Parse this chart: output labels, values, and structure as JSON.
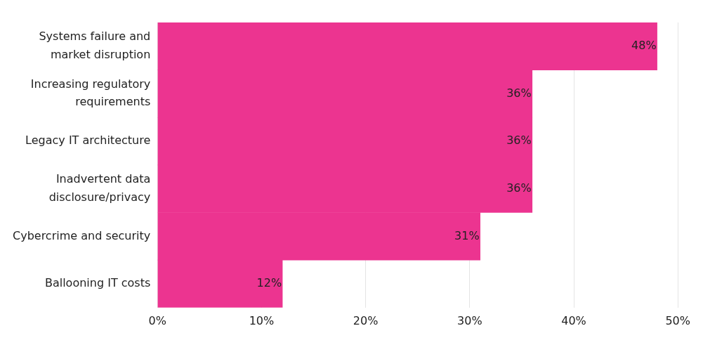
{
  "chart_data": {
    "type": "bar",
    "orientation": "horizontal",
    "categories": [
      "Systems failure and market disruption",
      "Increasing regulatory requirements",
      "Legacy IT architecture",
      "Inadvertent data disclosure/privacy",
      "Cybercrime and security",
      "Ballooning IT costs"
    ],
    "values": [
      48,
      36,
      36,
      36,
      31,
      12
    ],
    "color": "#ec3490",
    "xlim": [
      0,
      50
    ],
    "xticks": [
      {
        "value": 0,
        "label": "0%"
      },
      {
        "value": 10,
        "label": "10%"
      },
      {
        "value": 20,
        "label": "20%"
      },
      {
        "value": 30,
        "label": "30%"
      },
      {
        "value": 40,
        "label": "40%"
      },
      {
        "value": 50,
        "label": "50%"
      }
    ],
    "grid": "x",
    "legend": false,
    "value_labels": [
      "48%",
      "36%",
      "36%",
      "36%",
      "31%",
      "12%"
    ]
  }
}
